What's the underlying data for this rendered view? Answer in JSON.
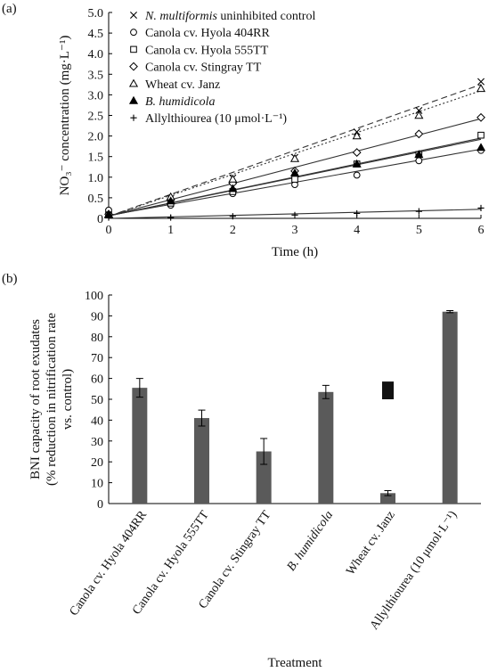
{
  "chart_data": [
    {
      "panel_label": "(a)",
      "type": "line",
      "xlabel": "Time (h)",
      "ylabel": "NO₃⁻ concentration (mg·L⁻¹)",
      "xlim": [
        0,
        6
      ],
      "ylim": [
        0,
        5.0
      ],
      "x_ticks": [
        "0",
        "1",
        "2",
        "3",
        "4",
        "5",
        "6"
      ],
      "y_ticks": [
        "0",
        "0.5",
        "1.0",
        "1.5",
        "2.0",
        "2.5",
        "3.0",
        "3.5",
        "4.0",
        "4.5",
        "5.0"
      ],
      "legend_position": "top-left",
      "x": [
        0,
        1,
        2,
        3,
        4,
        5,
        6
      ],
      "series": [
        {
          "name": "N. multiformis uninhibited control",
          "name_italic": "N. multiformis",
          "name_rest": " uninhibited control",
          "marker": "x",
          "line": "dashed",
          "values": [
            0.1,
            0.48,
            0.98,
            1.48,
            2.1,
            2.62,
            3.32
          ],
          "fit": [
            0.05,
            3.25
          ]
        },
        {
          "name": "Canola cv. Hyola 404RR",
          "marker": "circle",
          "line": "solid",
          "values": [
            0.2,
            0.32,
            0.6,
            0.82,
            1.05,
            1.4,
            1.65
          ],
          "fit": [
            0.07,
            1.68
          ]
        },
        {
          "name": "Canola cv. Hyola 555TT",
          "marker": "square",
          "line": "solid",
          "values": [
            0.08,
            0.37,
            0.65,
            0.95,
            1.32,
            1.55,
            2.02
          ],
          "fit": [
            0.06,
            1.95
          ]
        },
        {
          "name": "Canola cv. Stingray TT",
          "marker": "diamond",
          "line": "solid",
          "values": [
            0.1,
            0.45,
            0.85,
            1.15,
            1.6,
            2.05,
            2.45
          ],
          "fit": [
            0.06,
            2.42
          ]
        },
        {
          "name": "Wheat cv. Janz",
          "marker": "triangle-open",
          "line": "dotted",
          "values": [
            0.1,
            0.52,
            0.95,
            1.45,
            2.0,
            2.5,
            3.15
          ],
          "fit": [
            0.05,
            3.1
          ]
        },
        {
          "name": "B. humidicola",
          "name_italic": "B. humidicola",
          "name_rest": "",
          "marker": "triangle-filled",
          "line": "solid",
          "values": [
            0.08,
            0.42,
            0.72,
            1.1,
            1.32,
            1.55,
            1.72
          ],
          "fit": [
            0.06,
            1.92
          ]
        },
        {
          "name": "Allylthiourea (10 μmol·L⁻¹)",
          "marker": "plus",
          "line": "solid",
          "values": [
            0.02,
            0.02,
            0.05,
            0.08,
            0.12,
            0.17,
            0.25
          ],
          "fit": [
            0.0,
            0.22
          ]
        }
      ]
    },
    {
      "panel_label": "(b)",
      "type": "bar",
      "xlabel": "Treatment",
      "ylabel_line1": "BNI capacity of root exudates",
      "ylabel_line2": "(% reduction in nitrification rate",
      "ylabel_line3": "vs. control)",
      "ylim": [
        0,
        100
      ],
      "y_ticks": [
        "0",
        "10",
        "20",
        "30",
        "40",
        "50",
        "60",
        "70",
        "80",
        "90",
        "100"
      ],
      "grid": false,
      "categories": [
        {
          "label": "Canola cv. Hyola 404RR",
          "italic": ""
        },
        {
          "label": "Canola cv. Hyola 555TT",
          "italic": ""
        },
        {
          "label": "Canola cv. Stingray TT",
          "italic": ""
        },
        {
          "label": "B. humidicola",
          "italic": "B. humidicola"
        },
        {
          "label": "Wheat cv. Janz",
          "italic": ""
        },
        {
          "label": "Allylthiourea (10 μmol·L⁻¹)",
          "italic": ""
        }
      ],
      "values": [
        55.5,
        41,
        25,
        53.5,
        5,
        92
      ],
      "errors": [
        4.5,
        3.8,
        6.2,
        3.2,
        1.2,
        0.5
      ],
      "annotation_box": {
        "category_index": 4,
        "y_low": 50,
        "y_high": 58.5,
        "color": "#111111"
      },
      "bar_color": "#5a5a5a"
    }
  ]
}
